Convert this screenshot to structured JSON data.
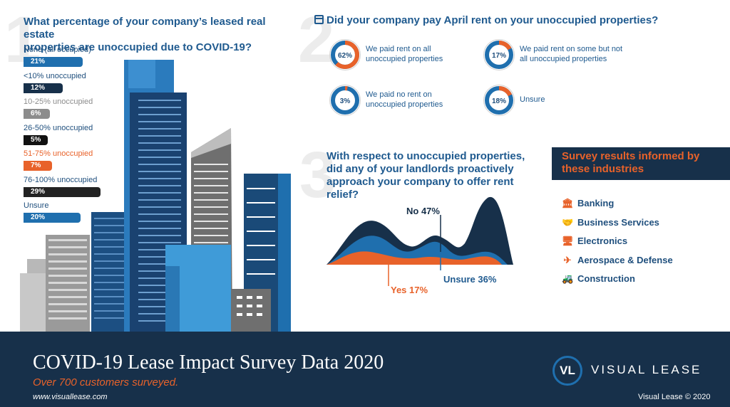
{
  "q1": {
    "number": "1",
    "title_line1": "What percentage of your company’s leased real estate",
    "title_line2": "properties are unoccupied due to COVID-19?"
  },
  "q2": {
    "number": "2",
    "title": "Did your company pay April rent on your unoccupied properties?"
  },
  "q3": {
    "number": "3",
    "title_line1": "With respect to unoccupied properties,",
    "title_line2": "did any of your landlords proactively",
    "title_line3": "approach your company to offer rent relief?"
  },
  "chart_data": [
    {
      "type": "bar",
      "title": "What percentage of your company’s leased real estate properties are unoccupied due to COVID-19?",
      "categories": [
        "None (all occupied)",
        "<10% unoccupied",
        "10-25% unoccupied",
        "26-50% unoccupied",
        "51-75% unoccupied",
        "76-100% unoccupied",
        "Unsure"
      ],
      "values": [
        21,
        12,
        6,
        5,
        7,
        29,
        20
      ],
      "value_labels": [
        "21%",
        "12%",
        "6%",
        "5%",
        "7%",
        "29%",
        "20%"
      ],
      "colors": [
        "#1f6fae",
        "#17304a",
        "#8c8c8c",
        "#111111",
        "#e8622a",
        "#222222",
        "#1f6fae"
      ],
      "label_colors": [
        "#1f4f7d",
        "#1f4f7d",
        "#8c8c8c",
        "#1f4f7d",
        "#e8622a",
        "#1f4f7d",
        "#1f4f7d"
      ]
    },
    {
      "type": "pie",
      "title": "Did your company pay April rent on your unoccupied properties?",
      "slices": [
        {
          "label_line1": "We paid rent on all",
          "label_line2": "unoccupied properties",
          "value": 62,
          "pct": "62%"
        },
        {
          "label_line1": "We paid rent on some but not",
          "label_line2": "all unoccupied properties",
          "value": 17,
          "pct": "17%"
        },
        {
          "label_line1": "We paid no rent on",
          "label_line2": "unoccupied properties",
          "value": 3,
          "pct": "3%"
        },
        {
          "label_line1": "Unsure",
          "label_line2": "",
          "value": 18,
          "pct": "18%"
        }
      ]
    },
    {
      "type": "area",
      "title": "With respect to unoccupied properties, did any of your landlords proactively approach your company to offer rent relief?",
      "series": [
        {
          "name": "No 47%",
          "value": 47,
          "color": "#17304a"
        },
        {
          "name": "Unsure 36%",
          "value": 36,
          "color": "#1f6fae"
        },
        {
          "name": "Yes 17%",
          "value": 17,
          "color": "#e8622a"
        }
      ]
    }
  ],
  "industries": {
    "heading_line1": "Survey results informed by",
    "heading_line2": "these industries",
    "items": [
      {
        "label": "Banking",
        "icon": "bank-icon",
        "glyph": "🏛"
      },
      {
        "label": "Business Services",
        "icon": "handshake-icon",
        "glyph": "🤝"
      },
      {
        "label": "Electronics",
        "icon": "monitor-icon",
        "glyph": "🖥"
      },
      {
        "label": "Aerospace & Defense",
        "icon": "airplane-icon",
        "glyph": "✈"
      },
      {
        "label": "Construction",
        "icon": "bulldozer-icon",
        "glyph": "🚜"
      }
    ]
  },
  "footer": {
    "title": "COVID-19 Lease Impact Survey Data 2020",
    "subtitle": "Over 700 customers surveyed.",
    "url": "www.visuallease.com",
    "logo_mark": "VL",
    "logo_text": "VISUAL LEASE",
    "copyright": "Visual Lease © 2020"
  },
  "colors": {
    "navy": "#17304a",
    "blue": "#1f6fae",
    "orange": "#e8622a",
    "gray": "#8c8c8c"
  }
}
